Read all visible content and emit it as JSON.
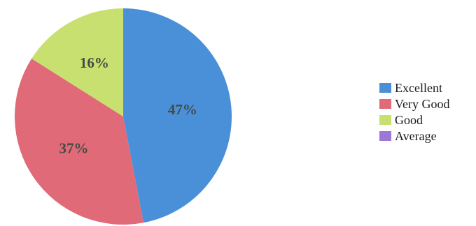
{
  "chart_data": {
    "type": "pie",
    "categories": [
      "Excellent",
      "Very Good",
      "Good",
      "Average"
    ],
    "values": [
      47,
      37,
      16,
      0
    ],
    "labels": [
      "47%",
      "37%",
      "16%",
      ""
    ],
    "colors": [
      "#4a90d9",
      "#e06a78",
      "#c8e070",
      "#9b78d8"
    ],
    "start_angle_deg": 0,
    "direction": "clockwise",
    "legend_position": "right"
  }
}
